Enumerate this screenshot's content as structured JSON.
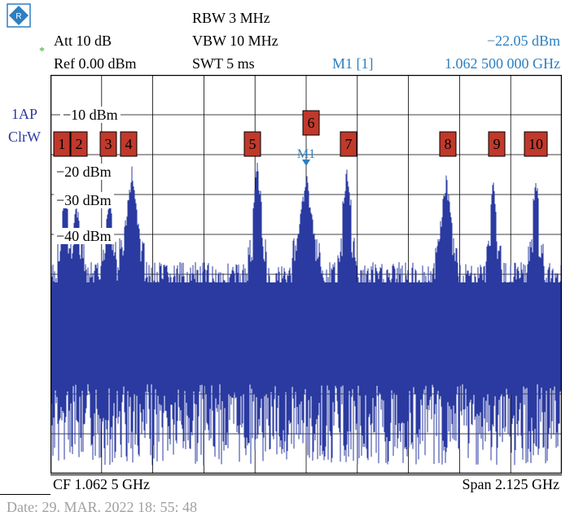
{
  "header": {
    "att": "Att 10 dB",
    "ref": "Ref 0.00 dBm",
    "rbw": "RBW 3 MHz",
    "vbw": "VBW 10 MHz",
    "swt": "SWT 5 ms",
    "marker_level": "−22.05 dBm",
    "marker_label": "M1 [1]",
    "marker_freq": "1.062 500 000 GHz",
    "star": "*"
  },
  "trace": {
    "name": "1AP",
    "mode": "ClrW"
  },
  "y_labels": [
    "−10 dBm",
    "−20 dBm",
    "−30 dBm",
    "−40 dBm"
  ],
  "markers": [
    {
      "label": "1"
    },
    {
      "label": "2"
    },
    {
      "label": "3"
    },
    {
      "label": "4"
    },
    {
      "label": "5"
    },
    {
      "label": "6"
    },
    {
      "label": "7"
    },
    {
      "label": "8"
    },
    {
      "label": "9"
    },
    {
      "label": "10"
    }
  ],
  "marker_m1_label": "M1",
  "footer": {
    "cf": "CF 1.062 5 GHz",
    "span": "Span 2.125 GHz",
    "date": "Date: 29. MAR. 2022  18: 55: 48"
  },
  "colors": {
    "trace": "#2a3aa0",
    "marker_box": "#c0392b",
    "marker_m1": "#2d7fc0",
    "grid": "#000000"
  }
}
